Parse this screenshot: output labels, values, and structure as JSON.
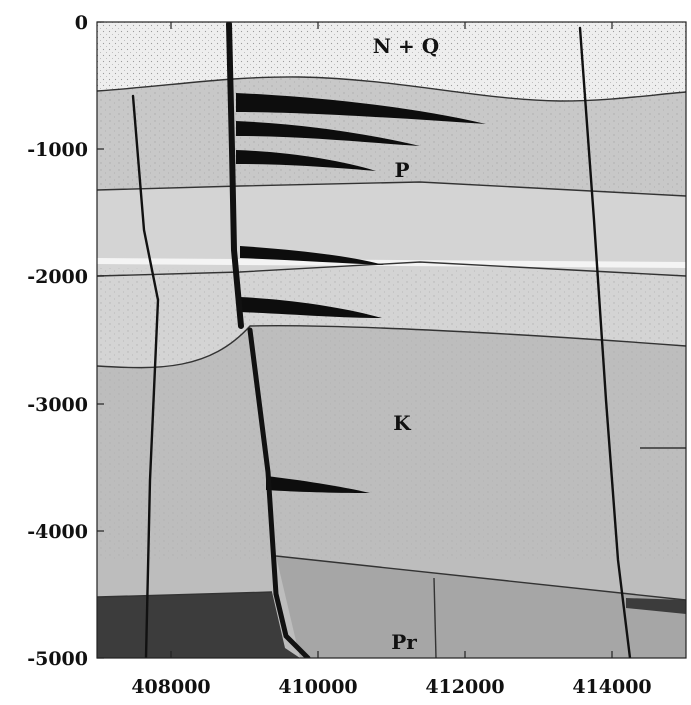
{
  "figure": {
    "y_ticks": [
      "0",
      "-1000",
      "-2000",
      "-3000",
      "-4000",
      "-5000"
    ],
    "x_ticks": [
      "408000",
      "410000",
      "412000",
      "414000"
    ],
    "unit_labels": {
      "nq": "N + Q",
      "p": "P",
      "k": "K",
      "pr": "Pr"
    },
    "colors": {
      "nq": "#eeeeee",
      "p_upper": "#c8c8c8",
      "p_lower": "#d4d4d4",
      "k": "#bdbdbd",
      "pr": "#a6a6a6",
      "pr_dark": "#3c3c3c",
      "fault": "#111111",
      "frame": "#222222"
    },
    "x_range": [
      407000,
      415000
    ],
    "y_range": [
      -5000,
      0
    ]
  }
}
